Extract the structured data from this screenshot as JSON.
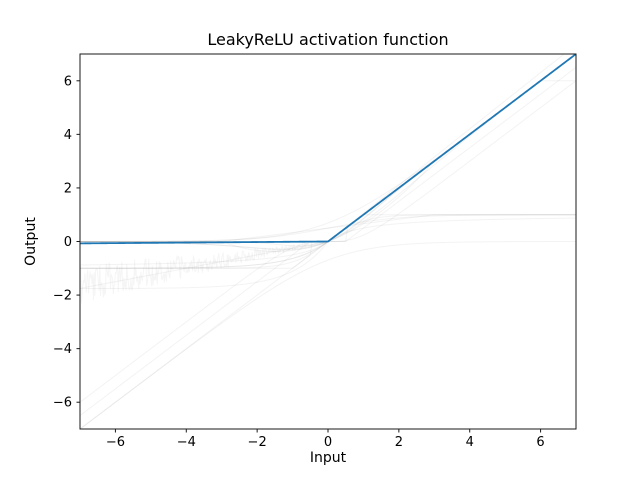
{
  "figure": {
    "background_color": "#ffffff",
    "text_color": "#000000",
    "spine_color": "#1a1a1a"
  },
  "chart_data": {
    "type": "line",
    "title": "LeakyReLU activation function",
    "xlabel": "Input",
    "ylabel": "Output",
    "xlim": [
      -7,
      7
    ],
    "ylim": [
      -7,
      7
    ],
    "xticks": [
      -6,
      -4,
      -2,
      0,
      2,
      4,
      6
    ],
    "yticks": [
      -6,
      -4,
      -2,
      0,
      2,
      4,
      6
    ],
    "grid": false,
    "legend": "none",
    "highlight_series": {
      "name": "LeakyReLU",
      "fn": "leaky_relu",
      "params": {
        "negative_slope": 0.01
      },
      "color": "#1f77b4",
      "linewidth": 1.8,
      "key_points": [
        [
          -7,
          -0.07
        ],
        [
          0,
          0
        ],
        [
          7,
          7
        ]
      ]
    },
    "background_series": {
      "description": "many faint gray activation-function curves drawn behind the highlighted line",
      "color": "#999999",
      "opacity": 0.12,
      "linewidth": 1,
      "curves": [
        {
          "name": "ReLU",
          "fn": "relu"
        },
        {
          "name": "ReLU6",
          "fn": "relu6"
        },
        {
          "name": "Sigmoid",
          "fn": "sigmoid"
        },
        {
          "name": "Tanh",
          "fn": "tanh"
        },
        {
          "name": "Softsign",
          "fn": "softsign"
        },
        {
          "name": "Hardtanh",
          "fn": "hardtanh"
        },
        {
          "name": "Hardsigmoid",
          "fn": "hardsigmoid"
        },
        {
          "name": "ELU",
          "fn": "elu"
        },
        {
          "name": "CELU",
          "fn": "celu"
        },
        {
          "name": "SELU",
          "fn": "selu"
        },
        {
          "name": "GELU",
          "fn": "gelu"
        },
        {
          "name": "SiLU",
          "fn": "silu"
        },
        {
          "name": "Mish",
          "fn": "mish"
        },
        {
          "name": "Softplus",
          "fn": "softplus"
        },
        {
          "name": "LogSigmoid",
          "fn": "logsigmoid"
        },
        {
          "name": "Hardswish",
          "fn": "hardswish"
        },
        {
          "name": "Hardshrink",
          "fn": "hardshrink"
        },
        {
          "name": "Softshrink",
          "fn": "softshrink"
        },
        {
          "name": "Tanhshrink",
          "fn": "tanhshrink"
        },
        {
          "name": "PReLU",
          "fn": "prelu"
        },
        {
          "name": "RReLU",
          "fn": "rrelu_noisy",
          "x_range": [
            -7,
            0
          ],
          "slope_range": [
            0.125,
            0.3333
          ],
          "opacity": 0.1
        }
      ]
    }
  }
}
